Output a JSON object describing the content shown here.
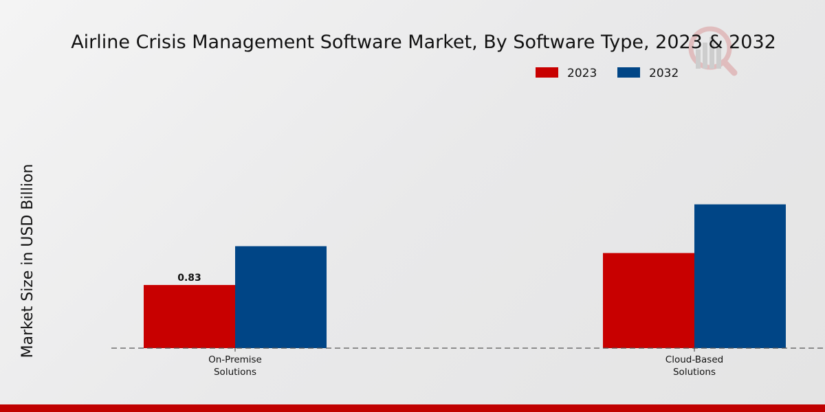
{
  "chart_data": {
    "type": "bar",
    "title": "Airline Crisis Management Software Market, By Software Type, 2023 & 2032",
    "xlabel": "",
    "ylabel": "Market Size in USD Billion",
    "categories": [
      "On-Premise\nSolutions",
      "Cloud-Based\nSolutions"
    ],
    "series": [
      {
        "name": "2023",
        "color": "#c80000",
        "values": [
          0.83,
          1.25
        ]
      },
      {
        "name": "2032",
        "color": "#004586",
        "values": [
          1.34,
          1.89
        ]
      }
    ],
    "data_labels": [
      {
        "series": 0,
        "category": 0,
        "text": "0.83"
      }
    ],
    "ylim": [
      0,
      2.5
    ],
    "grid": false,
    "legend_position": "top-center",
    "baseline_style": "dashed"
  },
  "watermark": {
    "icon": "market-research-logo-icon"
  },
  "footer": {
    "color": "#c00000"
  }
}
